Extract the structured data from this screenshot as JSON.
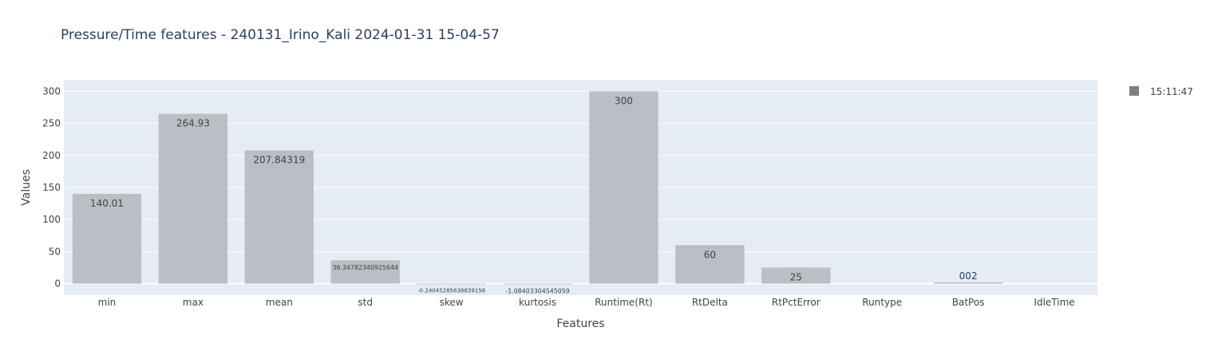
{
  "chart_data": {
    "type": "bar",
    "title": "Pressure/Time features - 240131_Irino_Kali 2024-01-31 15-04-57",
    "xlabel": "Features",
    "ylabel": "Values",
    "ylim": [
      -18,
      318
    ],
    "yticks": [
      0,
      50,
      100,
      150,
      200,
      250,
      300
    ],
    "grid": true,
    "legend_position": "top-right",
    "categories": [
      "min",
      "max",
      "mean",
      "std",
      "skew",
      "kurtosis",
      "Runtime(Rt)",
      "RtDelta",
      "RtPctError",
      "Runtype",
      "BatPos",
      "IdleTime"
    ],
    "series": [
      {
        "name": "15:11:47",
        "color": "#808080",
        "values": [
          140.01,
          264.93,
          207.84319,
          36.34782340925644,
          -0.24045285638839156,
          -1.08403304545059,
          300,
          60,
          25,
          null,
          2,
          null
        ],
        "labels": [
          "140.01",
          "264.93",
          "207.84319",
          "36.34782340925644",
          "-0.24045285638839156",
          "-1.08403304545059",
          "300",
          "60",
          "25",
          "",
          "002",
          ""
        ]
      }
    ],
    "colors": {
      "plot_background": "#e5ecf6",
      "grid": "#ffffff",
      "bar_fill": "#bbbec4",
      "text": "#2a3f5f",
      "tick_text": "#444444"
    }
  }
}
